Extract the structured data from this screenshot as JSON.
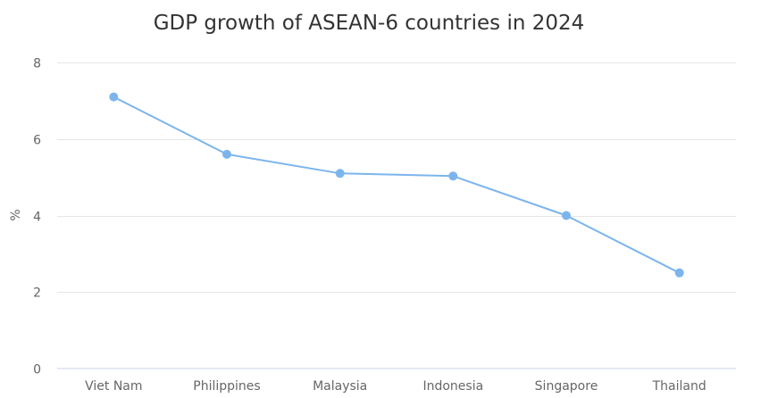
{
  "chart_data": {
    "type": "line",
    "title": "GDP growth of ASEAN-6 countries in 2024",
    "xlabel": "",
    "ylabel": "%",
    "categories": [
      "Viet Nam",
      "Philippines",
      "Malaysia",
      "Indonesia",
      "Singapore",
      "Thailand"
    ],
    "series": [
      {
        "values": [
          7.1,
          5.6,
          5.1,
          5.03,
          4.0,
          2.5
        ],
        "color": "#7cb5ec"
      }
    ],
    "ylim": [
      0,
      8
    ],
    "yticks": [
      "0",
      "2",
      "4",
      "6",
      "8"
    ],
    "grid": true,
    "legend": "none"
  }
}
